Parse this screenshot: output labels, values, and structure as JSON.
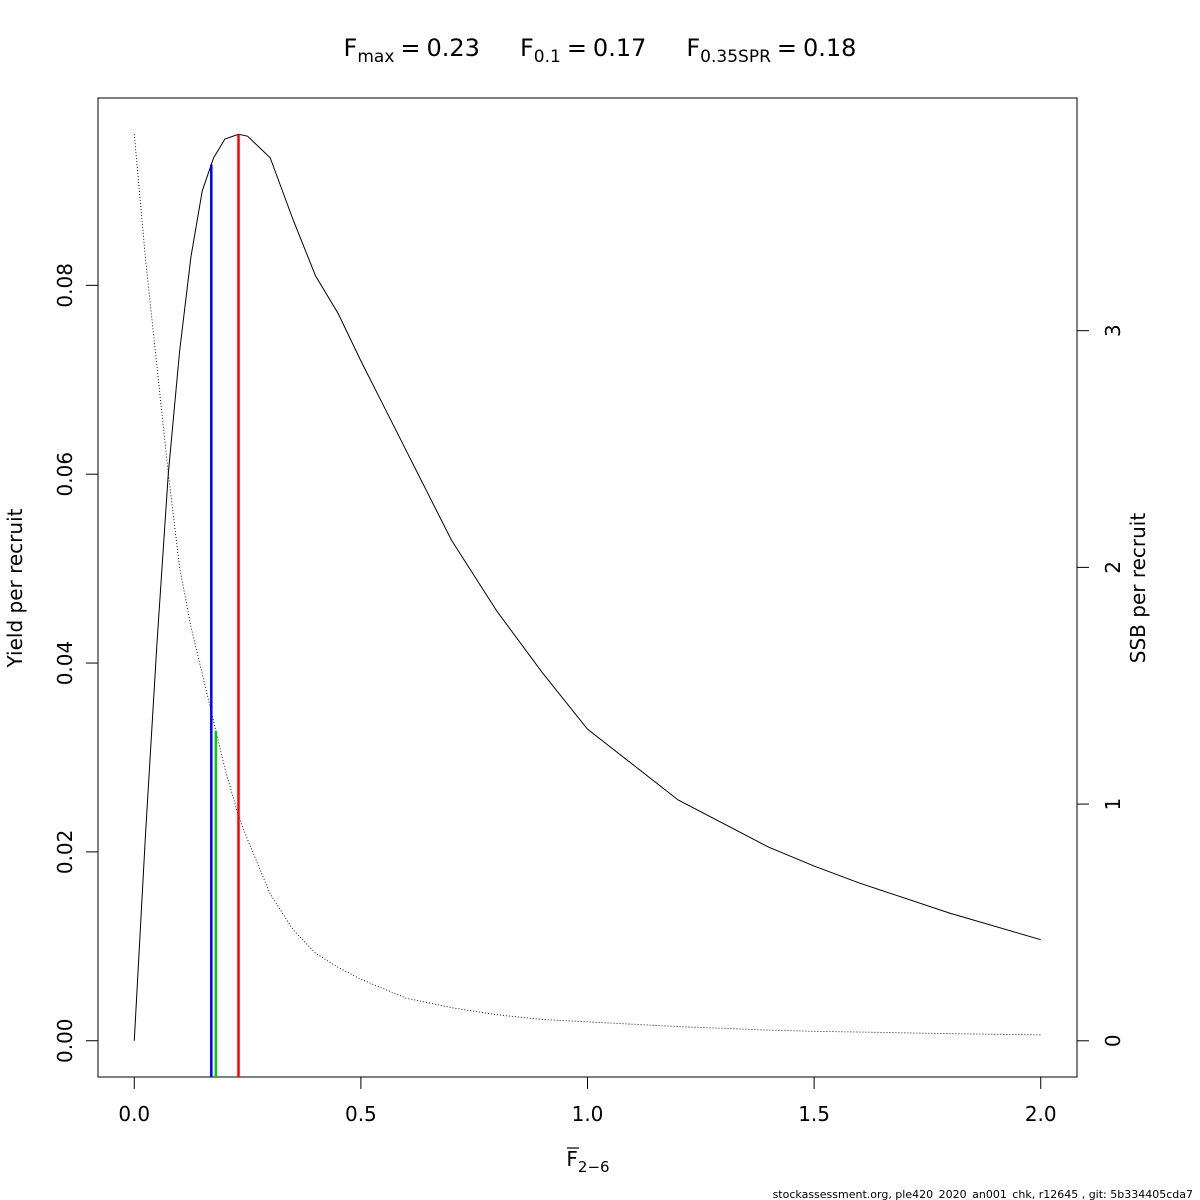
{
  "chart_data": {
    "type": "line",
    "reference_points": [
      {
        "symbol": "F",
        "subscript": "max",
        "value": 0.23,
        "color": "#ff0000",
        "axis": "y"
      },
      {
        "symbol": "F",
        "subscript": "0.1",
        "value": 0.17,
        "color": "#0000ff",
        "axis": "y"
      },
      {
        "symbol": "F",
        "subscript": "0.35SPR",
        "value": 0.18,
        "color": "#00cd00",
        "axis": "y2"
      }
    ],
    "equals": "=",
    "xlabel": {
      "symbol": "F",
      "subscript": "2−6"
    },
    "ylabel": "Yield per recruit",
    "y2label": "SSB per recruit",
    "footer": "stockassessment.org, ple420_2020_an001_chk, r12645 , git: 5b334405cda7",
    "x": [
      0,
      0.025,
      0.05,
      0.075,
      0.1,
      0.125,
      0.15,
      0.175,
      0.2,
      0.23,
      0.25,
      0.3,
      0.35,
      0.4,
      0.45,
      0.5,
      0.6,
      0.7,
      0.8,
      0.9,
      1.0,
      1.2,
      1.4,
      1.5,
      1.6,
      1.8,
      2.0
    ],
    "series": [
      {
        "color": "#000000",
        "line_style": "solid",
        "axis": "y",
        "values": [
          0,
          0.022,
          0.042,
          0.06,
          0.073,
          0.083,
          0.09,
          0.0935,
          0.0955,
          0.096,
          0.0958,
          0.0935,
          0.087,
          0.081,
          0.077,
          0.072,
          0.0625,
          0.053,
          0.0455,
          0.039,
          0.033,
          0.0255,
          0.0205,
          0.0185,
          0.0167,
          0.0135,
          0.0107
        ]
      },
      {
        "color": "#000000",
        "line_style": "dotted",
        "axis": "y2",
        "values": [
          3.83,
          3.3,
          2.85,
          2.4,
          2.0,
          1.75,
          1.55,
          1.35,
          1.15,
          0.95,
          0.85,
          0.62,
          0.47,
          0.37,
          0.31,
          0.26,
          0.18,
          0.14,
          0.11,
          0.09,
          0.08,
          0.06,
          0.045,
          0.04,
          0.037,
          0.03,
          0.025
        ]
      }
    ],
    "xlim": [
      -0.08,
      2.08
    ],
    "ylim": [
      -0.00384,
      0.09984
    ],
    "y2lim": [
      -0.153,
      3.983
    ],
    "xticks": [
      {
        "value": 0,
        "label": "0.0"
      },
      {
        "value": 0.5,
        "label": "0.5"
      },
      {
        "value": 1,
        "label": "1.0"
      },
      {
        "value": 1.5,
        "label": "1.5"
      },
      {
        "value": 2,
        "label": "2.0"
      }
    ],
    "yticks": [
      {
        "value": 0,
        "label": "0.00"
      },
      {
        "value": 0.02,
        "label": "0.02"
      },
      {
        "value": 0.04,
        "label": "0.04"
      },
      {
        "value": 0.06,
        "label": "0.06"
      },
      {
        "value": 0.08,
        "label": "0.08"
      }
    ],
    "y2ticks": [
      0,
      1,
      2,
      3
    ]
  }
}
